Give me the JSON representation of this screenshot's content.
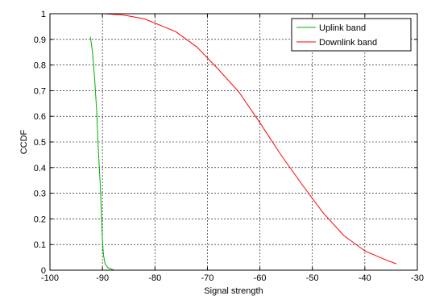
{
  "chart_data": {
    "type": "line",
    "title": "",
    "xlabel": "Signal strength",
    "ylabel": "CCDF",
    "xlim": [
      -100,
      -30
    ],
    "ylim": [
      0,
      1
    ],
    "xticks": [
      -100,
      -90,
      -80,
      -70,
      -60,
      -50,
      -40,
      -30
    ],
    "yticks": [
      0,
      0.1,
      0.2,
      0.3,
      0.4,
      0.5,
      0.6,
      0.7,
      0.8,
      0.9,
      1
    ],
    "xtick_labels": [
      "-100",
      "-90",
      "-80",
      "-70",
      "-60",
      "-50",
      "-40",
      "-30"
    ],
    "ytick_labels": [
      "0",
      "0.1",
      "0.2",
      "0.3",
      "0.4",
      "0.5",
      "0.6",
      "0.7",
      "0.8",
      "0.9",
      "1"
    ],
    "grid": true,
    "legend_position": "top-right",
    "series": [
      {
        "name": "Uplink band",
        "color": "#00b000",
        "x": [
          -92.3,
          -91.9,
          -91.5,
          -91.1,
          -90.8,
          -90.4,
          -90.2,
          -90.0,
          -89.8,
          -89.5,
          -89.0,
          -88.2,
          -87.7
        ],
        "y": [
          0.91,
          0.85,
          0.75,
          0.62,
          0.48,
          0.33,
          0.22,
          0.12,
          0.06,
          0.025,
          0.01,
          0.003,
          0.0
        ]
      },
      {
        "name": "Downlink band",
        "color": "#ff0000",
        "x": [
          -89.7,
          -86,
          -82,
          -79,
          -76,
          -72,
          -68,
          -64,
          -60,
          -56,
          -52,
          -48,
          -44,
          -40,
          -36,
          -34
        ],
        "y": [
          1.0,
          0.995,
          0.98,
          0.955,
          0.93,
          0.87,
          0.785,
          0.695,
          0.575,
          0.45,
          0.335,
          0.225,
          0.135,
          0.075,
          0.04,
          0.025
        ]
      }
    ]
  }
}
